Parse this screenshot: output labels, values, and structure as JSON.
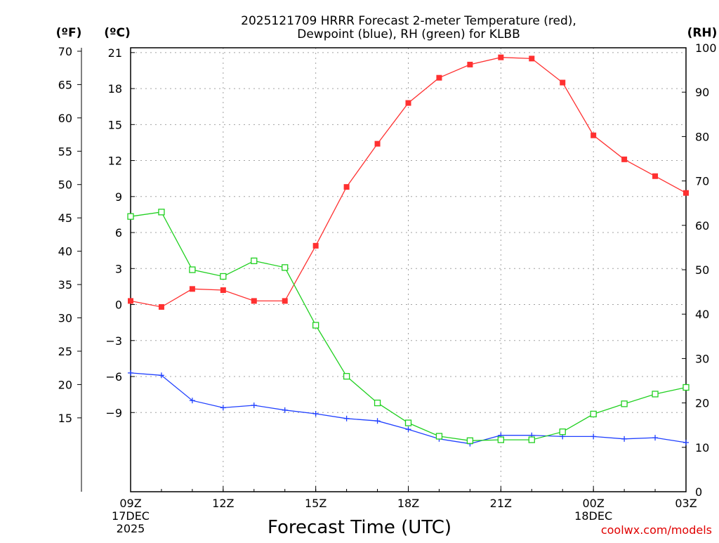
{
  "chart_data": {
    "type": "line",
    "title_line1": "2025121709 HRRR Forecast 2-meter Temperature (red),",
    "title_line2": "Dewpoint (blue), RH (green) for KLBB",
    "xlabel": "Forecast Time (UTC)",
    "credit": "coolwx.com/models",
    "units": {
      "fahrenheit": "(ºF)",
      "celsius": "(ºC)",
      "rh": "(RH)"
    },
    "x": [
      0,
      1,
      2,
      3,
      4,
      5,
      6,
      7,
      8,
      9,
      10,
      11,
      12,
      13,
      14,
      15,
      16,
      17,
      18
    ],
    "xlim": [
      0,
      18
    ],
    "x_ticks": [
      {
        "x": 0,
        "lines": [
          "09Z",
          "17DEC",
          "2025"
        ]
      },
      {
        "x": 3,
        "lines": [
          "12Z"
        ]
      },
      {
        "x": 6,
        "lines": [
          "15Z"
        ]
      },
      {
        "x": 9,
        "lines": [
          "18Z"
        ]
      },
      {
        "x": 12,
        "lines": [
          "21Z"
        ]
      },
      {
        "x": 15,
        "lines": [
          "00Z",
          "18DEC"
        ]
      },
      {
        "x": 18,
        "lines": [
          "03Z"
        ]
      }
    ],
    "celsius_axis": {
      "ylim": [
        -15.6,
        21.4
      ],
      "ticks": [
        21,
        18,
        15,
        12,
        9,
        6,
        3,
        0,
        -3,
        -6,
        -9
      ],
      "tick_labels": [
        "21",
        "18",
        "15",
        "12",
        "9",
        "6",
        "3",
        "0",
        "−3",
        "−6",
        "−9"
      ]
    },
    "fahrenheit_axis": {
      "ticks": [
        70,
        65,
        60,
        55,
        50,
        45,
        40,
        35,
        30,
        25,
        20,
        15
      ]
    },
    "rh_axis": {
      "ylim": [
        0,
        100
      ],
      "ticks": [
        100,
        90,
        80,
        70,
        60,
        50,
        40,
        30,
        20,
        10,
        0
      ]
    },
    "series": [
      {
        "name": "Temperature",
        "axis": "celsius",
        "color": "#ff3030",
        "marker": "filled-square",
        "values": [
          0.3,
          -0.2,
          1.3,
          1.2,
          0.3,
          0.3,
          4.9,
          9.8,
          13.4,
          16.8,
          18.9,
          20.0,
          20.6,
          20.5,
          18.5,
          14.1,
          12.1,
          10.7,
          9.3
        ]
      },
      {
        "name": "Dewpoint",
        "axis": "celsius",
        "color": "#2040ff",
        "marker": "plus",
        "values": [
          -5.7,
          -5.9,
          -8.0,
          -8.6,
          -8.4,
          -8.8,
          -9.1,
          -9.5,
          -9.7,
          -10.4,
          -11.2,
          -11.6,
          -10.9,
          -10.9,
          -11.0,
          -11.0,
          -11.2,
          -11.1,
          -11.5
        ]
      },
      {
        "name": "RH",
        "axis": "rh",
        "color": "#20d020",
        "marker": "open-square",
        "values": [
          62,
          63,
          50,
          48.5,
          52,
          50.5,
          37.5,
          26,
          20,
          15.5,
          12.5,
          11.5,
          11.7,
          11.7,
          13.5,
          17.5,
          19.8,
          22,
          23.5
        ]
      }
    ]
  }
}
